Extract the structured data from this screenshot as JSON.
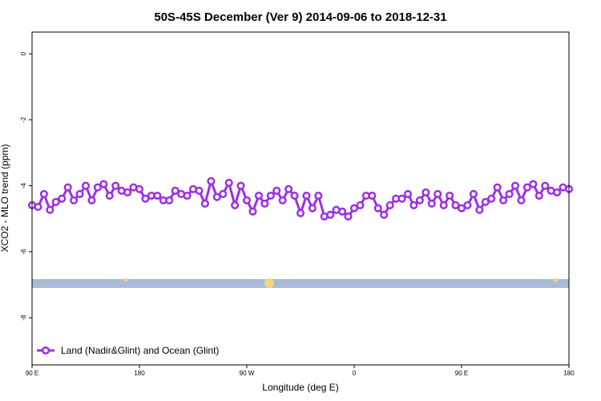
{
  "chart_data": {
    "type": "line",
    "title": "50S-45S December (Ver 9)   2014-09-06 to 2018-12-31",
    "x_label": "Longitude (deg E)",
    "y_label": "XCO2 - MLO trend (ppm)",
    "x": [
      90,
      95,
      100,
      105,
      110,
      115,
      120,
      125,
      130,
      135,
      140,
      145,
      150,
      155,
      160,
      165,
      170,
      175,
      180,
      185,
      190,
      195,
      200,
      205,
      210,
      215,
      220,
      225,
      230,
      235,
      240,
      245,
      250,
      255,
      260,
      265,
      270,
      275,
      280,
      285,
      290,
      295,
      300,
      305,
      310,
      315,
      320,
      325,
      330,
      335,
      340,
      345,
      350,
      355,
      360,
      365,
      370,
      375,
      380,
      385,
      390,
      395,
      400,
      405,
      410,
      415,
      420,
      425,
      430,
      435,
      440,
      445,
      450,
      455,
      460,
      465,
      470,
      475,
      480,
      485,
      490,
      495,
      500,
      505,
      510,
      515,
      520,
      525,
      530,
      535,
      540
    ],
    "series": [
      {
        "name": "Land (Nadir&Glint) and Ocean (Glint)",
        "color": "#9b30e6",
        "values": [
          -4.59,
          -4.64,
          -4.25,
          -4.73,
          -4.49,
          -4.39,
          -4.05,
          -4.44,
          -4.25,
          -4.0,
          -4.44,
          -4.05,
          -3.95,
          -4.3,
          -4.0,
          -4.15,
          -4.2,
          -4.05,
          -4.1,
          -4.39,
          -4.3,
          -4.3,
          -4.44,
          -4.44,
          -4.15,
          -4.25,
          -4.3,
          -4.1,
          -4.15,
          -4.54,
          -3.86,
          -4.34,
          -4.25,
          -3.91,
          -4.59,
          -4.0,
          -4.44,
          -4.78,
          -4.3,
          -4.54,
          -4.3,
          -4.15,
          -4.44,
          -4.1,
          -4.3,
          -4.83,
          -4.3,
          -4.68,
          -4.3,
          -4.93,
          -4.88,
          -4.73,
          -4.78,
          -4.93,
          -4.68,
          -4.59,
          -4.3,
          -4.3,
          -4.68,
          -4.88,
          -4.59,
          -4.39,
          -4.39,
          -4.25,
          -4.59,
          -4.44,
          -4.2,
          -4.54,
          -4.25,
          -4.59,
          -4.3,
          -4.59,
          -4.68,
          -4.59,
          -4.25,
          -4.73,
          -4.49,
          -4.39,
          -4.05,
          -4.44,
          -4.25,
          -4.0,
          -4.44,
          -4.05,
          -3.95,
          -4.3,
          -4.0,
          -4.15,
          -4.2,
          -4.05,
          -4.1
        ]
      }
    ],
    "xlim": [
      90,
      540
    ],
    "xticks": [
      {
        "value": 90,
        "label": "90 E"
      },
      {
        "value": 180,
        "label": "180"
      },
      {
        "value": 270,
        "label": "90 W"
      },
      {
        "value": 360,
        "label": "0"
      },
      {
        "value": 450,
        "label": "90 E"
      },
      {
        "value": 540,
        "label": "180"
      }
    ],
    "ylim": [
      -9.43,
      0.66
    ],
    "yticks": [
      0,
      -2,
      -4,
      -6,
      -8
    ],
    "legend": "bottom-left"
  }
}
